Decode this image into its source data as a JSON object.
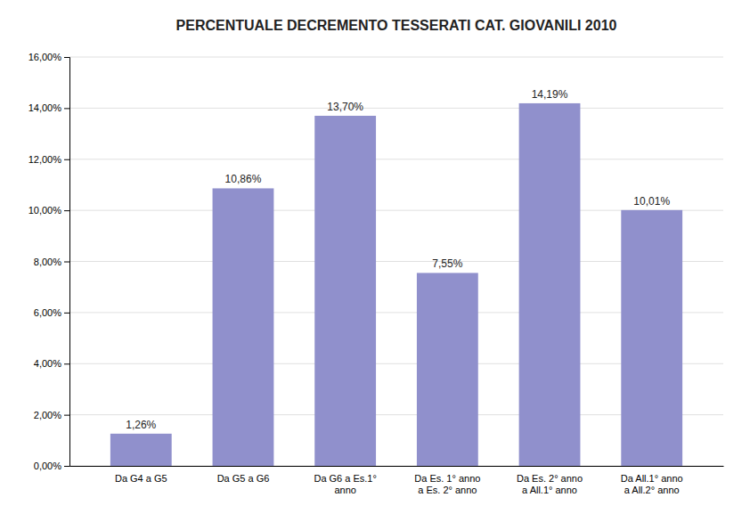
{
  "chart_data": {
    "type": "bar",
    "title": "PERCENTUALE DECREMENTO TESSERATI CAT. GIOVANILI 2010",
    "categories": [
      "Da G4 a G5",
      "Da G5 a G6",
      "Da G6 a Es.1°\nanno",
      "Da Es. 1° anno\na Es. 2° anno",
      "Da Es. 2° anno\na All.1° anno",
      "Da All.1° anno\na All.2° anno"
    ],
    "values": [
      1.26,
      10.86,
      13.7,
      7.55,
      14.19,
      10.01
    ],
    "value_labels": [
      "1,26%",
      "10,86%",
      "13,70%",
      "7,55%",
      "14,19%",
      "10,01%"
    ],
    "color": "#9090CC",
    "ylim": [
      0,
      16
    ],
    "yticks": [
      {
        "value": 0,
        "label": "0,00%"
      },
      {
        "value": 2,
        "label": "2,00%"
      },
      {
        "value": 4,
        "label": "4,00%"
      },
      {
        "value": 6,
        "label": "6,00%"
      },
      {
        "value": 8,
        "label": "8,00%"
      },
      {
        "value": 10,
        "label": "10,00%"
      },
      {
        "value": 12,
        "label": "12,00%"
      },
      {
        "value": 14,
        "label": "14,00%"
      },
      {
        "value": 16,
        "label": "16,00%"
      }
    ],
    "grid": true,
    "data_labels": true
  }
}
